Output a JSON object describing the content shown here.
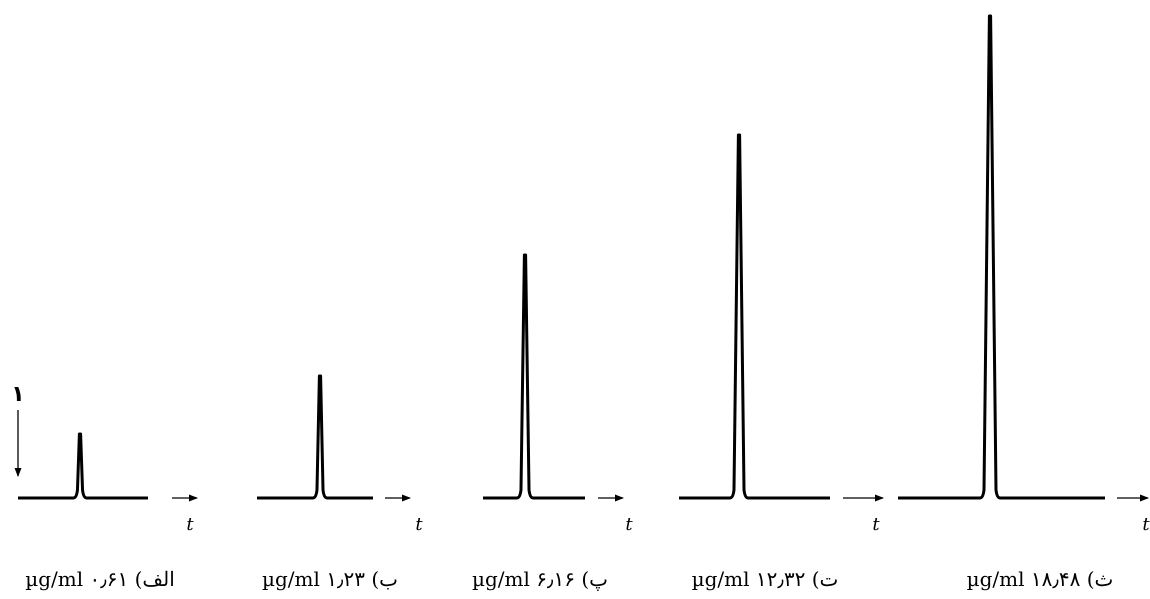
{
  "chart_data": {
    "type": "line",
    "x_axis_label": "t",
    "marker_label": "۱",
    "panels": [
      {
        "caption": "الف) ۰٫۶۱ µg/ml",
        "concentration": 0.61,
        "peak_height": 64
      },
      {
        "caption": "ب) ۱٫۲۳ µg/ml",
        "concentration": 1.23,
        "peak_height": 122
      },
      {
        "caption": "پ) ۶٫۱۶ µg/ml",
        "concentration": 6.16,
        "peak_height": 243
      },
      {
        "caption": "ت) ۱۲٫۳۲ µg/ml",
        "concentration": 12.32,
        "peak_height": 363
      },
      {
        "caption": "ث) ۱۸٫۴۸ µg/ml",
        "concentration": 18.48,
        "peak_height": 482
      }
    ]
  }
}
